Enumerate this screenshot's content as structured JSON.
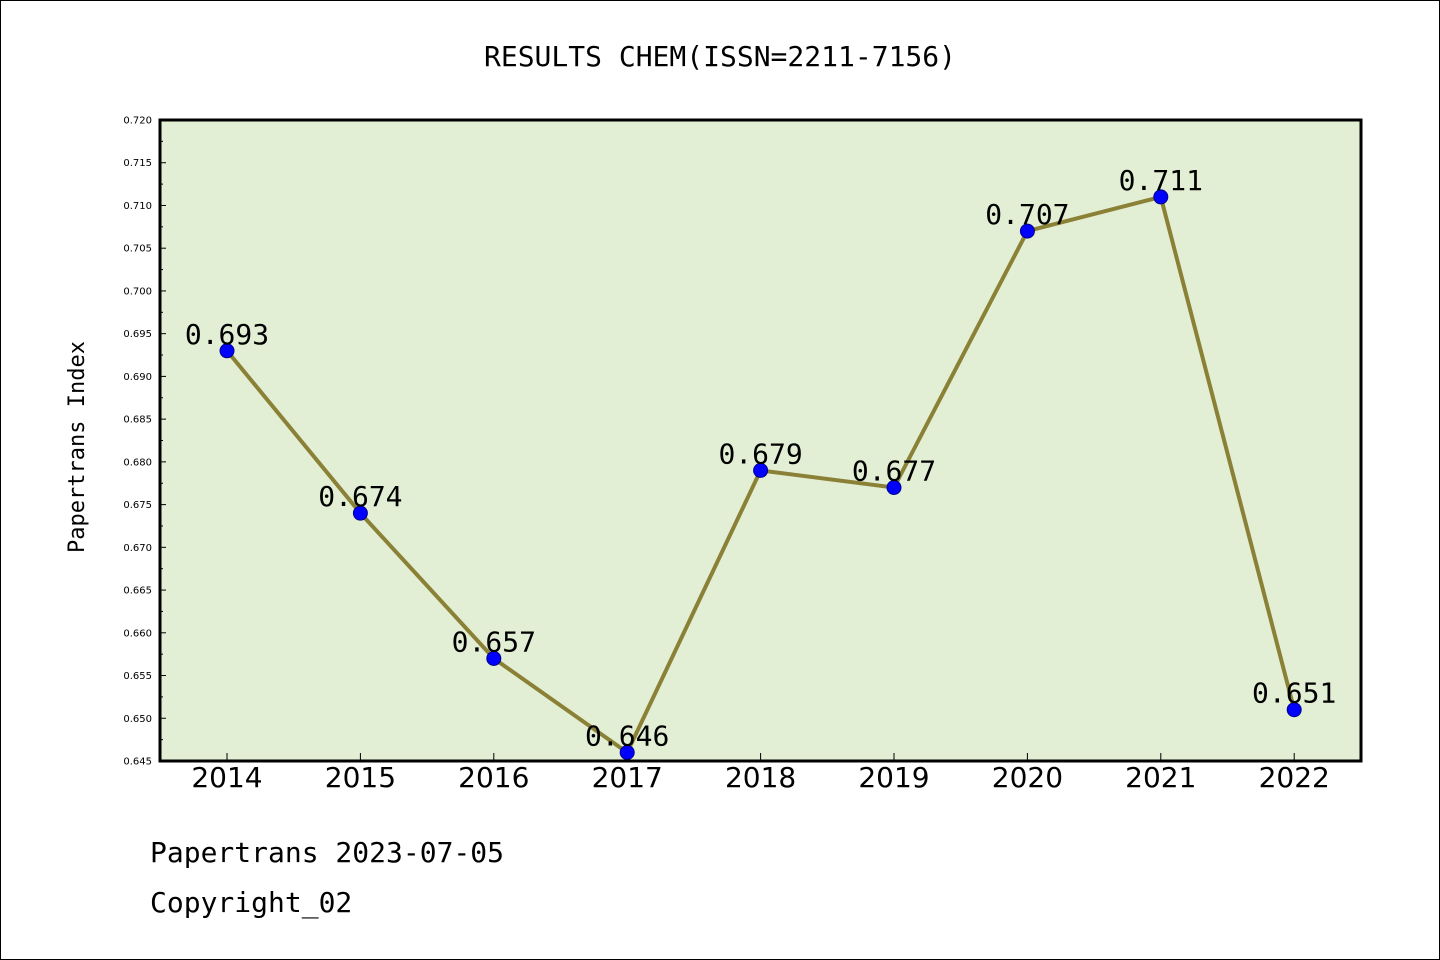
{
  "chart_data": {
    "type": "line",
    "title": "RESULTS CHEM(ISSN=2211-7156)",
    "xlabel": "",
    "ylabel": "Papertrans Index",
    "x": [
      "2014",
      "2015",
      "2016",
      "2017",
      "2018",
      "2019",
      "2020",
      "2021",
      "2022"
    ],
    "series": [
      {
        "values": [
          0.693,
          0.674,
          0.657,
          0.646,
          0.679,
          0.677,
          0.707,
          0.711,
          0.651
        ],
        "labels": [
          "0.693",
          "0.674",
          "0.657",
          "0.646",
          "0.679",
          "0.677",
          "0.707",
          "0.711",
          "0.651"
        ]
      }
    ],
    "ylim": [
      0.645,
      0.72
    ],
    "yticks": [
      "0.645",
      "0.650",
      "0.655",
      "0.660",
      "0.665",
      "0.670",
      "0.675",
      "0.680",
      "0.685",
      "0.690",
      "0.695",
      "0.700",
      "0.705",
      "0.710",
      "0.715",
      "0.720"
    ],
    "grid": false,
    "colors": {
      "plot_bg": "#e2efd4",
      "line": "#8b8136",
      "marker": "#0000ff"
    }
  },
  "footer": {
    "line1": "Papertrans 2023-07-05",
    "line2": "Copyright_02"
  }
}
